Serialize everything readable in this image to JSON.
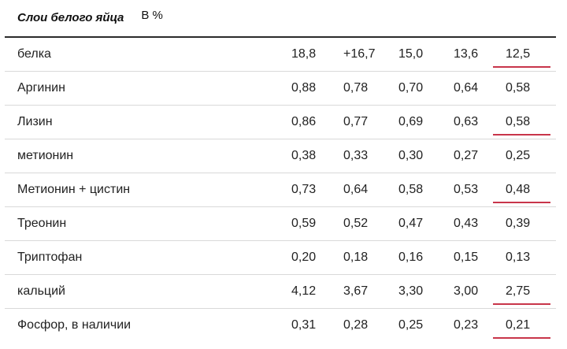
{
  "header": {
    "title": "Слои белого яйца",
    "unit": "В %"
  },
  "accent_color": "#c8354a",
  "rows": [
    {
      "name": "белка",
      "values": [
        "18,8",
        "+16,7",
        "15,0",
        "13,6",
        "12,5"
      ],
      "underline_last": true
    },
    {
      "name": "Аргинин",
      "values": [
        "0,88",
        "0,78",
        "0,70",
        "0,64",
        "0,58"
      ],
      "underline_last": false
    },
    {
      "name": "Лизин",
      "values": [
        "0,86",
        "0,77",
        "0,69",
        "0,63",
        "0,58"
      ],
      "underline_last": true
    },
    {
      "name": "метионин",
      "values": [
        "0,38",
        "0,33",
        "0,30",
        "0,27",
        "0,25"
      ],
      "underline_last": false
    },
    {
      "name": "Метионин + цистин",
      "values": [
        "0,73",
        "0,64",
        "0,58",
        "0,53",
        "0,48"
      ],
      "underline_last": true
    },
    {
      "name": "Треонин",
      "values": [
        "0,59",
        "0,52",
        "0,47",
        "0,43",
        "0,39"
      ],
      "underline_last": false
    },
    {
      "name": "Триптофан",
      "values": [
        "0,20",
        "0,18",
        "0,16",
        "0,15",
        "0,13"
      ],
      "underline_last": false
    },
    {
      "name": "кальций",
      "values": [
        "4,12",
        "3,67",
        "3,30",
        "3,00",
        "2,75"
      ],
      "underline_last": true
    },
    {
      "name": "Фосфор, в наличии",
      "values": [
        "0,31",
        "0,28",
        "0,25",
        "0,23",
        "0,21"
      ],
      "underline_last": true
    }
  ]
}
